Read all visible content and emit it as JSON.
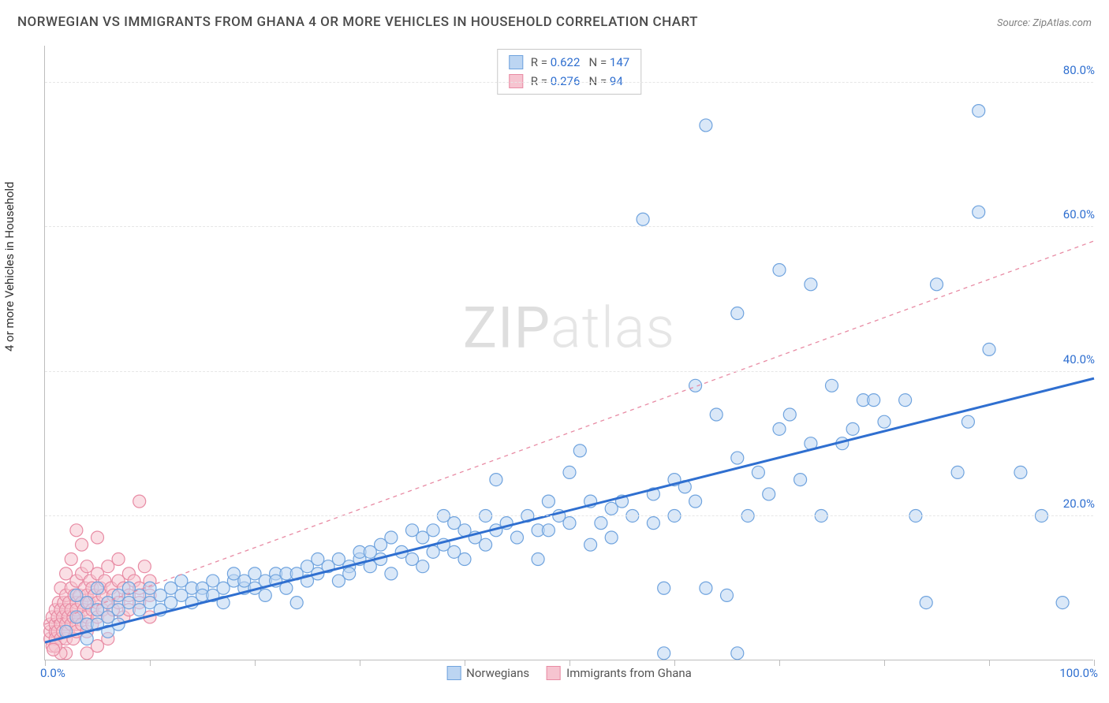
{
  "title": "NORWEGIAN VS IMMIGRANTS FROM GHANA 4 OR MORE VEHICLES IN HOUSEHOLD CORRELATION CHART",
  "source": "Source: ZipAtlas.com",
  "y_axis_label": "4 or more Vehicles in Household",
  "watermark": {
    "bold": "ZIP",
    "thin": "atlas"
  },
  "chart": {
    "type": "scatter",
    "xlim": [
      0,
      100
    ],
    "ylim": [
      0,
      85
    ],
    "x_tick_step": 10,
    "y_ticks": [
      20,
      40,
      60,
      80
    ],
    "y_tick_suffix": ".0%",
    "x_corner_labels": [
      "0.0%",
      "100.0%"
    ],
    "axis_label_color": "#2f6fd0",
    "background_color": "#ffffff",
    "grid_color": "#e6e6e6",
    "marker_radius": 8,
    "marker_stroke_width": 1.2,
    "series": [
      {
        "name": "Norwegians",
        "fill": "#bcd5f2",
        "stroke": "#6fa3de",
        "fill_opacity": 0.55,
        "R": "0.622",
        "N": "147",
        "trend": {
          "x1": 0,
          "y1": 2.5,
          "x2": 100,
          "y2": 39,
          "color": "#2f6fd0",
          "width": 3,
          "dash": "none"
        },
        "points": [
          [
            2,
            4
          ],
          [
            3,
            6
          ],
          [
            4,
            5
          ],
          [
            5,
            7
          ],
          [
            4,
            8
          ],
          [
            6,
            6
          ],
          [
            3,
            9
          ],
          [
            5,
            10
          ],
          [
            6,
            8
          ],
          [
            7,
            9
          ],
          [
            5,
            5
          ],
          [
            8,
            8
          ],
          [
            7,
            7
          ],
          [
            8,
            10
          ],
          [
            9,
            9
          ],
          [
            9,
            7
          ],
          [
            10,
            10
          ],
          [
            10,
            8
          ],
          [
            11,
            9
          ],
          [
            11,
            7
          ],
          [
            12,
            10
          ],
          [
            12,
            8
          ],
          [
            13,
            9
          ],
          [
            13,
            11
          ],
          [
            14,
            8
          ],
          [
            14,
            10
          ],
          [
            15,
            10
          ],
          [
            15,
            9
          ],
          [
            16,
            11
          ],
          [
            16,
            9
          ],
          [
            17,
            10
          ],
          [
            17,
            8
          ],
          [
            18,
            11
          ],
          [
            18,
            12
          ],
          [
            19,
            10
          ],
          [
            19,
            11
          ],
          [
            20,
            12
          ],
          [
            20,
            10
          ],
          [
            21,
            11
          ],
          [
            21,
            9
          ],
          [
            22,
            12
          ],
          [
            22,
            11
          ],
          [
            23,
            12
          ],
          [
            23,
            10
          ],
          [
            24,
            8
          ],
          [
            24,
            12
          ],
          [
            25,
            13
          ],
          [
            25,
            11
          ],
          [
            26,
            12
          ],
          [
            26,
            14
          ],
          [
            27,
            13
          ],
          [
            28,
            14
          ],
          [
            28,
            11
          ],
          [
            29,
            13
          ],
          [
            29,
            12
          ],
          [
            30,
            14
          ],
          [
            30,
            15
          ],
          [
            31,
            15
          ],
          [
            31,
            13
          ],
          [
            32,
            14
          ],
          [
            32,
            16
          ],
          [
            33,
            12
          ],
          [
            33,
            17
          ],
          [
            34,
            15
          ],
          [
            35,
            14
          ],
          [
            35,
            18
          ],
          [
            36,
            17
          ],
          [
            36,
            13
          ],
          [
            37,
            18
          ],
          [
            37,
            15
          ],
          [
            38,
            20
          ],
          [
            38,
            16
          ],
          [
            39,
            19
          ],
          [
            39,
            15
          ],
          [
            40,
            18
          ],
          [
            40,
            14
          ],
          [
            41,
            17
          ],
          [
            42,
            20
          ],
          [
            42,
            16
          ],
          [
            43,
            18
          ],
          [
            43,
            25
          ],
          [
            44,
            19
          ],
          [
            45,
            17
          ],
          [
            46,
            20
          ],
          [
            47,
            18
          ],
          [
            47,
            14
          ],
          [
            48,
            22
          ],
          [
            48,
            18
          ],
          [
            49,
            20
          ],
          [
            50,
            26
          ],
          [
            50,
            19
          ],
          [
            51,
            29
          ],
          [
            52,
            16
          ],
          [
            52,
            22
          ],
          [
            53,
            19
          ],
          [
            54,
            21
          ],
          [
            54,
            17
          ],
          [
            55,
            22
          ],
          [
            56,
            20
          ],
          [
            57,
            61
          ],
          [
            58,
            23
          ],
          [
            58,
            19
          ],
          [
            59,
            10
          ],
          [
            60,
            25
          ],
          [
            60,
            20
          ],
          [
            61,
            24
          ],
          [
            62,
            38
          ],
          [
            62,
            22
          ],
          [
            63,
            10
          ],
          [
            63,
            74
          ],
          [
            64,
            34
          ],
          [
            65,
            9
          ],
          [
            66,
            48
          ],
          [
            66,
            28
          ],
          [
            67,
            20
          ],
          [
            68,
            26
          ],
          [
            69,
            23
          ],
          [
            70,
            54
          ],
          [
            70,
            32
          ],
          [
            71,
            34
          ],
          [
            72,
            25
          ],
          [
            73,
            52
          ],
          [
            73,
            30
          ],
          [
            74,
            20
          ],
          [
            75,
            38
          ],
          [
            76,
            30
          ],
          [
            77,
            32
          ],
          [
            78,
            36
          ],
          [
            79,
            36
          ],
          [
            80,
            33
          ],
          [
            82,
            36
          ],
          [
            83,
            20
          ],
          [
            84,
            8
          ],
          [
            85,
            52
          ],
          [
            87,
            26
          ],
          [
            88,
            33
          ],
          [
            89,
            62
          ],
          [
            89,
            76
          ],
          [
            90,
            43
          ],
          [
            93,
            26
          ],
          [
            95,
            20
          ],
          [
            97,
            8
          ],
          [
            59,
            1
          ],
          [
            66,
            1
          ],
          [
            4,
            3
          ],
          [
            6,
            4
          ],
          [
            7,
            5
          ]
        ]
      },
      {
        "name": "Immigrants from Ghana",
        "fill": "#f6c4d0",
        "stroke": "#e88ba4",
        "fill_opacity": 0.55,
        "R": "0.276",
        "N": "94",
        "trend": {
          "x1": 0,
          "y1": 5,
          "x2": 100,
          "y2": 58,
          "color": "#e88ba4",
          "width": 1.3,
          "dash": "5,5"
        },
        "points": [
          [
            0.5,
            3
          ],
          [
            0.5,
            4
          ],
          [
            0.5,
            5
          ],
          [
            0.7,
            2
          ],
          [
            0.7,
            6
          ],
          [
            1,
            4
          ],
          [
            1,
            5
          ],
          [
            1,
            3
          ],
          [
            1,
            7
          ],
          [
            1.2,
            6
          ],
          [
            1.2,
            4
          ],
          [
            1.3,
            8
          ],
          [
            1.5,
            5
          ],
          [
            1.5,
            3
          ],
          [
            1.5,
            7
          ],
          [
            1.5,
            10
          ],
          [
            1.7,
            6
          ],
          [
            1.7,
            4
          ],
          [
            1.8,
            8
          ],
          [
            2,
            5
          ],
          [
            2,
            7
          ],
          [
            2,
            3
          ],
          [
            2,
            9
          ],
          [
            2,
            12
          ],
          [
            2.2,
            6
          ],
          [
            2.2,
            4
          ],
          [
            2.3,
            8
          ],
          [
            2.5,
            5
          ],
          [
            2.5,
            7
          ],
          [
            2.5,
            10
          ],
          [
            2.5,
            14
          ],
          [
            2.7,
            6
          ],
          [
            2.7,
            3
          ],
          [
            2.8,
            9
          ],
          [
            3,
            5
          ],
          [
            3,
            8
          ],
          [
            3,
            11
          ],
          [
            3,
            7
          ],
          [
            3,
            4
          ],
          [
            3.2,
            6
          ],
          [
            3.3,
            9
          ],
          [
            3.5,
            5
          ],
          [
            3.5,
            8
          ],
          [
            3.5,
            12
          ],
          [
            3.5,
            16
          ],
          [
            3.7,
            7
          ],
          [
            3.8,
            10
          ],
          [
            4,
            6
          ],
          [
            4,
            9
          ],
          [
            4,
            4
          ],
          [
            4,
            13
          ],
          [
            4.2,
            8
          ],
          [
            4.3,
            11
          ],
          [
            4.5,
            7
          ],
          [
            4.5,
            5
          ],
          [
            4.5,
            10
          ],
          [
            4.7,
            9
          ],
          [
            5,
            8
          ],
          [
            5,
            6
          ],
          [
            5,
            12
          ],
          [
            5,
            17
          ],
          [
            5.3,
            10
          ],
          [
            5.5,
            7
          ],
          [
            5.5,
            9
          ],
          [
            5.7,
            11
          ],
          [
            6,
            8
          ],
          [
            6,
            6
          ],
          [
            6,
            13
          ],
          [
            6.3,
            10
          ],
          [
            6.5,
            9
          ],
          [
            6.5,
            7
          ],
          [
            7,
            11
          ],
          [
            7,
            8
          ],
          [
            7,
            14
          ],
          [
            7.5,
            10
          ],
          [
            7.5,
            6
          ],
          [
            8,
            12
          ],
          [
            8,
            9
          ],
          [
            8,
            7
          ],
          [
            8.5,
            11
          ],
          [
            9,
            8
          ],
          [
            9,
            22
          ],
          [
            9,
            10
          ],
          [
            9.5,
            13
          ],
          [
            10,
            9
          ],
          [
            10,
            11
          ],
          [
            10,
            6
          ],
          [
            3,
            18
          ],
          [
            4,
            1
          ],
          [
            5,
            2
          ],
          [
            6,
            3
          ],
          [
            2,
            1
          ],
          [
            1.5,
            1
          ],
          [
            1,
            2
          ],
          [
            0.8,
            1.5
          ]
        ]
      }
    ]
  },
  "legend_top": {
    "r_label": "R =",
    "n_label": "N =",
    "text_color": "#555555",
    "value_color": "#2f6fd0"
  },
  "legend_bottom": [
    {
      "label": "Norwegians",
      "series": 0
    },
    {
      "label": "Immigrants from Ghana",
      "series": 1
    }
  ]
}
